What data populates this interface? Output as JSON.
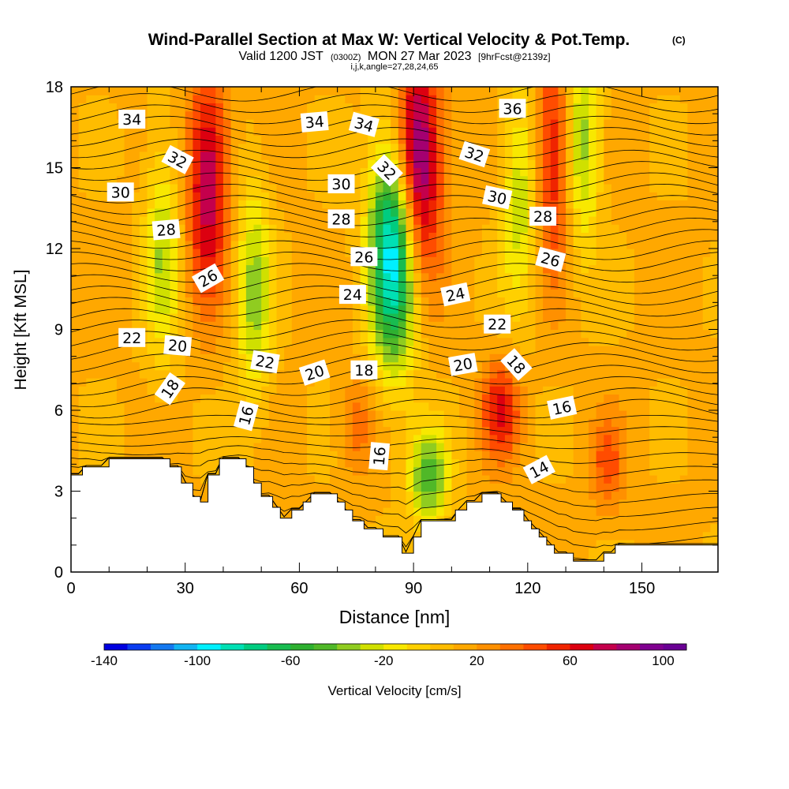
{
  "chart_data": {
    "type": "heatmap",
    "title": "Wind-Parallel Section at Max W: Vertical Velocity & Pot.Temp.",
    "title_mark": "(C)",
    "subtitle_valid": "Valid 1200 JST",
    "subtitle_zulu": "(0300Z)",
    "subtitle_date": "MON 27 Mar 2023",
    "subtitle_fcst": "[9hrFcst@2139z]",
    "subtitle_indices": "i,j,k,angle=27,28,24,65",
    "xlabel": "Distance [nm]",
    "ylabel": "Height [Kft MSL]",
    "xlim": [
      0,
      170
    ],
    "ylim": [
      0,
      18
    ],
    "x_ticks": [
      0,
      30,
      60,
      90,
      120,
      150
    ],
    "y_ticks": [
      0,
      3,
      6,
      9,
      12,
      15,
      18
    ],
    "colorbar": {
      "label": "Vertical Velocity [cm/s]",
      "min": -140,
      "max": 110,
      "step": 10,
      "tick_values": [
        -140,
        -100,
        -60,
        -20,
        20,
        60,
        100
      ],
      "tick_labels": [
        "-140",
        "-100",
        "-60",
        "-20",
        "20",
        "60",
        "100"
      ],
      "colors": [
        "#0000e0",
        "#0a3cf0",
        "#1478f0",
        "#12b4f2",
        "#00f0ff",
        "#00e0b4",
        "#00cc80",
        "#18bc50",
        "#2eb030",
        "#50b828",
        "#90cc20",
        "#d0e000",
        "#f8e800",
        "#ffd000",
        "#ffbc00",
        "#ffa800",
        "#ff9000",
        "#ff7000",
        "#ff4c00",
        "#f02400",
        "#dc0010",
        "#c4004c",
        "#a40070",
        "#800090",
        "#6a0094"
      ]
    },
    "vertical_velocity_features": [
      {
        "x": 36,
        "z": 14.5,
        "w": 70
      },
      {
        "x": 24,
        "z": 12,
        "w": -40
      },
      {
        "x": 48,
        "z": 10.5,
        "w": -45
      },
      {
        "x": 85,
        "z": 12,
        "w": -120
      },
      {
        "x": 91,
        "z": 15,
        "w": 100
      },
      {
        "x": 94,
        "z": 3.5,
        "w": -60
      },
      {
        "x": 113,
        "z": 6,
        "w": 50
      },
      {
        "x": 118,
        "z": 14,
        "w": -40
      },
      {
        "x": 127,
        "z": 15.5,
        "w": 55
      },
      {
        "x": 134,
        "z": 16,
        "w": -50
      },
      {
        "x": 141,
        "z": 4,
        "w": 30
      },
      {
        "x": 75,
        "z": 5.5,
        "w": 25
      }
    ],
    "theta_contour_labels": [
      {
        "value": "34",
        "x": 16,
        "z": 16.8,
        "angle": 0
      },
      {
        "value": "34",
        "x": 64,
        "z": 16.7,
        "angle": -5
      },
      {
        "value": "34",
        "x": 77,
        "z": 16.6,
        "angle": 15
      },
      {
        "value": "36",
        "x": 116,
        "z": 17.2,
        "angle": 0
      },
      {
        "value": "32",
        "x": 28,
        "z": 15.3,
        "angle": 28
      },
      {
        "value": "32",
        "x": 83,
        "z": 14.9,
        "angle": 45
      },
      {
        "value": "32",
        "x": 106,
        "z": 15.5,
        "angle": 18
      },
      {
        "value": "30",
        "x": 13,
        "z": 14.1,
        "angle": 0
      },
      {
        "value": "30",
        "x": 71,
        "z": 14.4,
        "angle": 0
      },
      {
        "value": "30",
        "x": 112,
        "z": 13.9,
        "angle": 12
      },
      {
        "value": "28",
        "x": 25,
        "z": 12.7,
        "angle": -5
      },
      {
        "value": "28",
        "x": 71,
        "z": 13.1,
        "angle": 0
      },
      {
        "value": "28",
        "x": 124,
        "z": 13.2,
        "angle": 0
      },
      {
        "value": "26",
        "x": 36,
        "z": 10.9,
        "angle": -30
      },
      {
        "value": "26",
        "x": 77,
        "z": 11.7,
        "angle": 0
      },
      {
        "value": "26",
        "x": 126,
        "z": 11.6,
        "angle": 15
      },
      {
        "value": "24",
        "x": 74,
        "z": 10.3,
        "angle": 0
      },
      {
        "value": "24",
        "x": 101,
        "z": 10.3,
        "angle": -12
      },
      {
        "value": "22",
        "x": 16,
        "z": 8.7,
        "angle": 0
      },
      {
        "value": "22",
        "x": 51,
        "z": 7.8,
        "angle": 10
      },
      {
        "value": "22",
        "x": 112,
        "z": 9.2,
        "angle": 0
      },
      {
        "value": "20",
        "x": 28,
        "z": 8.4,
        "angle": 5
      },
      {
        "value": "20",
        "x": 64,
        "z": 7.4,
        "angle": -18
      },
      {
        "value": "20",
        "x": 103,
        "z": 7.7,
        "angle": -10
      },
      {
        "value": "18",
        "x": 26,
        "z": 6.8,
        "angle": -55
      },
      {
        "value": "18",
        "x": 77,
        "z": 7.5,
        "angle": 0
      },
      {
        "value": "18",
        "x": 117,
        "z": 7.7,
        "angle": 48
      },
      {
        "value": "16",
        "x": 46,
        "z": 5.8,
        "angle": -75
      },
      {
        "value": "16",
        "x": 81,
        "z": 4.3,
        "angle": -85
      },
      {
        "value": "16",
        "x": 129,
        "z": 6.1,
        "angle": -12
      },
      {
        "value": "14",
        "x": 123,
        "z": 3.8,
        "angle": -28
      }
    ],
    "terrain_profile": [
      [
        0,
        3.6
      ],
      [
        3,
        3.6
      ],
      [
        3,
        3.9
      ],
      [
        10,
        3.9
      ],
      [
        10,
        4.2
      ],
      [
        26,
        4.2
      ],
      [
        26,
        3.9
      ],
      [
        29,
        3.9
      ],
      [
        29,
        3.3
      ],
      [
        32,
        3.3
      ],
      [
        32,
        2.8
      ],
      [
        34,
        2.8
      ],
      [
        34,
        2.6
      ],
      [
        36,
        2.6
      ],
      [
        36,
        3.6
      ],
      [
        39,
        3.6
      ],
      [
        39,
        4.2
      ],
      [
        46,
        4.2
      ],
      [
        46,
        3.9
      ],
      [
        48,
        3.9
      ],
      [
        48,
        3.3
      ],
      [
        50,
        3.3
      ],
      [
        50,
        2.8
      ],
      [
        53,
        2.8
      ],
      [
        53,
        2.4
      ],
      [
        55,
        2.4
      ],
      [
        55,
        2.0
      ],
      [
        58,
        2.0
      ],
      [
        58,
        2.3
      ],
      [
        61,
        2.3
      ],
      [
        61,
        2.6
      ],
      [
        63,
        2.6
      ],
      [
        63,
        2.9
      ],
      [
        70,
        2.9
      ],
      [
        70,
        2.6
      ],
      [
        72,
        2.6
      ],
      [
        72,
        2.3
      ],
      [
        74,
        2.3
      ],
      [
        74,
        1.9
      ],
      [
        77,
        1.9
      ],
      [
        77,
        1.6
      ],
      [
        82,
        1.6
      ],
      [
        82,
        1.3
      ],
      [
        87,
        1.3
      ],
      [
        87,
        0.7
      ],
      [
        90,
        0.7
      ],
      [
        90,
        1.3
      ],
      [
        92,
        1.3
      ],
      [
        92,
        1.9
      ],
      [
        101,
        1.9
      ],
      [
        101,
        2.3
      ],
      [
        104,
        2.3
      ],
      [
        104,
        2.6
      ],
      [
        108,
        2.6
      ],
      [
        108,
        2.9
      ],
      [
        113,
        2.9
      ],
      [
        113,
        2.6
      ],
      [
        116,
        2.6
      ],
      [
        116,
        2.3
      ],
      [
        119,
        2.3
      ],
      [
        119,
        1.9
      ],
      [
        121,
        1.9
      ],
      [
        121,
        1.6
      ],
      [
        123,
        1.6
      ],
      [
        123,
        1.3
      ],
      [
        125,
        1.3
      ],
      [
        125,
        1.0
      ],
      [
        127,
        1.0
      ],
      [
        127,
        0.7
      ],
      [
        132,
        0.7
      ],
      [
        132,
        0.4
      ],
      [
        140,
        0.4
      ],
      [
        140,
        0.7
      ],
      [
        143,
        0.7
      ],
      [
        143,
        1.0
      ],
      [
        170,
        1.0
      ]
    ]
  }
}
